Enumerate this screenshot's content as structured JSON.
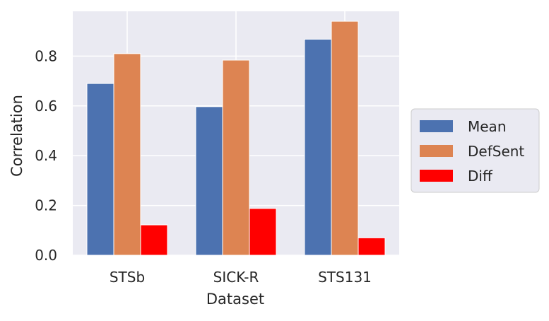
{
  "chart_data": {
    "type": "bar",
    "title": "",
    "xlabel": "Dataset",
    "ylabel": "Correlation",
    "categories": [
      "STSb",
      "SICK-R",
      "STS131"
    ],
    "series": [
      {
        "name": "Mean",
        "color": "#4c72b0",
        "values": [
          0.69,
          0.597,
          0.868
        ]
      },
      {
        "name": "DefSent",
        "color": "#dd8452",
        "values": [
          0.81,
          0.784,
          0.94
        ]
      },
      {
        "name": "Diff",
        "color": "#ff0000",
        "values": [
          0.122,
          0.188,
          0.07
        ]
      }
    ],
    "ylim": [
      0,
      0.98
    ],
    "yticks": [
      "0.0",
      "0.2",
      "0.4",
      "0.6",
      "0.8"
    ],
    "grid": true,
    "legend_position": "right"
  }
}
